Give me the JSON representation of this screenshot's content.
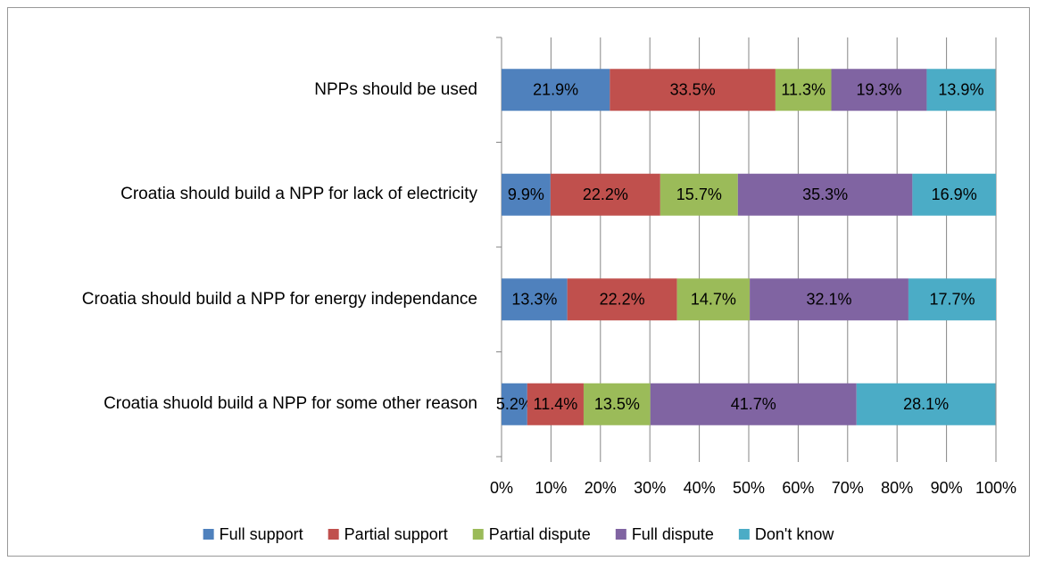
{
  "chart_data": {
    "type": "stacked_barh",
    "categories": [
      "NPPs should be used",
      "Croatia should build a NPP for lack of electricity",
      "Croatia should build a NPP for energy independance",
      "Croatia shuold build a NPP for some other reason"
    ],
    "series": [
      {
        "name": "Full support",
        "color": "#4f81bd",
        "values": [
          21.9,
          9.9,
          13.3,
          5.2
        ],
        "value_labels": [
          "21.9%",
          "9.9%",
          "13.3%",
          "5.2%"
        ]
      },
      {
        "name": "Partial support",
        "color": "#c0504d",
        "values": [
          33.5,
          22.2,
          22.2,
          11.4
        ],
        "value_labels": [
          "33.5%",
          "22.2%",
          "22.2%",
          "11.4%"
        ]
      },
      {
        "name": "Partial dispute",
        "color": "#9bbb59",
        "values": [
          11.3,
          15.7,
          14.7,
          13.5
        ],
        "value_labels": [
          "11.3%",
          "15.7%",
          "14.7%",
          "13.5%"
        ]
      },
      {
        "name": "Full dispute",
        "color": "#8064a2",
        "values": [
          19.3,
          35.3,
          32.1,
          41.7
        ],
        "value_labels": [
          "19.3%",
          "35.3%",
          "32.1%",
          "41.7%"
        ]
      },
      {
        "name": "Don't know",
        "color": "#4bacc6",
        "values": [
          13.9,
          16.9,
          17.7,
          28.1
        ],
        "value_labels": [
          "13.9%",
          "16.9%",
          "17.7%",
          "28.1%"
        ]
      }
    ],
    "xlim": [
      0,
      100
    ],
    "xticks": [
      {
        "value": 0,
        "label": "0%"
      },
      {
        "value": 10,
        "label": "10%"
      },
      {
        "value": 20,
        "label": "20%"
      },
      {
        "value": 30,
        "label": "30%"
      },
      {
        "value": 40,
        "label": "40%"
      },
      {
        "value": 50,
        "label": "50%"
      },
      {
        "value": 60,
        "label": "60%"
      },
      {
        "value": 70,
        "label": "70%"
      },
      {
        "value": 80,
        "label": "80%"
      },
      {
        "value": 90,
        "label": "90%"
      },
      {
        "value": 100,
        "label": "100%"
      }
    ],
    "grid": true,
    "legend": "bottom"
  }
}
